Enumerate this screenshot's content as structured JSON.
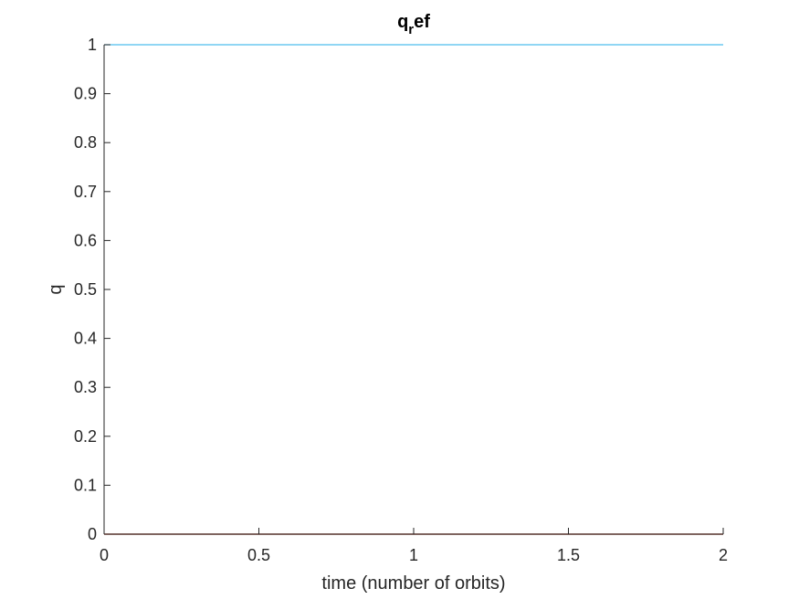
{
  "chart_data": {
    "type": "line",
    "title": {
      "main": "q",
      "subscript": "r",
      "rest": "ef"
    },
    "xlabel": "time (number of orbits)",
    "ylabel": "q",
    "xlim": [
      0,
      2
    ],
    "ylim": [
      0,
      1
    ],
    "xticks": [
      0,
      0.5,
      1,
      1.5,
      2
    ],
    "xtick_labels": [
      "0",
      "0.5",
      "1",
      "1.5",
      "2"
    ],
    "yticks": [
      0,
      0.1,
      0.2,
      0.3,
      0.4,
      0.5,
      0.6,
      0.7,
      0.8,
      0.9,
      1
    ],
    "ytick_labels": [
      "0",
      "0.1",
      "0.2",
      "0.3",
      "0.4",
      "0.5",
      "0.6",
      "0.7",
      "0.8",
      "0.9",
      "1"
    ],
    "grid": false,
    "legend": "none",
    "series": [
      {
        "x": [
          0,
          2
        ],
        "values": [
          1,
          1
        ],
        "color": "#4DBEEE"
      },
      {
        "x": [
          0,
          2
        ],
        "values": [
          0,
          0
        ],
        "color": "#D95319"
      },
      {
        "x": [
          0,
          2
        ],
        "values": [
          0,
          0
        ],
        "color": "#EDB120"
      },
      {
        "x": [
          0,
          2
        ],
        "values": [
          0,
          0
        ],
        "color": "#7E2F8E"
      }
    ]
  }
}
